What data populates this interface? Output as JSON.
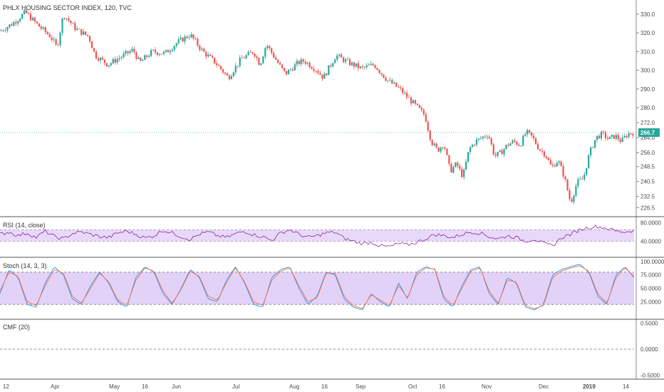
{
  "chart_data": [
    {
      "type": "candlestick",
      "title": "PHLX HOUSING SECTOR INDEX, 120, TVC",
      "y_ticks": [
        226.5,
        232.5,
        240.5,
        248.5,
        256.0,
        264.0,
        272.0,
        280.0,
        290.0,
        300.0,
        310.0,
        320.0,
        330.0
      ],
      "last_price": 266.7,
      "x_ticks": [
        "12",
        "Apr",
        "May",
        "16",
        "Jun",
        "Jul",
        "Aug",
        "16",
        "Sep",
        "Oct",
        "16",
        "Nov",
        "Dec",
        "2019",
        "14"
      ],
      "close_path": [
        {
          "t": 0.0,
          "v": 321
        },
        {
          "t": 0.02,
          "v": 325
        },
        {
          "t": 0.04,
          "v": 331
        },
        {
          "t": 0.06,
          "v": 324
        },
        {
          "t": 0.08,
          "v": 318
        },
        {
          "t": 0.09,
          "v": 312
        },
        {
          "t": 0.1,
          "v": 330
        },
        {
          "t": 0.12,
          "v": 322
        },
        {
          "t": 0.14,
          "v": 318
        },
        {
          "t": 0.15,
          "v": 308
        },
        {
          "t": 0.17,
          "v": 303
        },
        {
          "t": 0.19,
          "v": 307
        },
        {
          "t": 0.21,
          "v": 311
        },
        {
          "t": 0.22,
          "v": 304
        },
        {
          "t": 0.24,
          "v": 310
        },
        {
          "t": 0.26,
          "v": 309
        },
        {
          "t": 0.28,
          "v": 315
        },
        {
          "t": 0.3,
          "v": 319
        },
        {
          "t": 0.32,
          "v": 310
        },
        {
          "t": 0.34,
          "v": 304
        },
        {
          "t": 0.36,
          "v": 296
        },
        {
          "t": 0.38,
          "v": 306
        },
        {
          "t": 0.4,
          "v": 310
        },
        {
          "t": 0.41,
          "v": 303
        },
        {
          "t": 0.42,
          "v": 314
        },
        {
          "t": 0.44,
          "v": 303
        },
        {
          "t": 0.45,
          "v": 298
        },
        {
          "t": 0.47,
          "v": 304
        },
        {
          "t": 0.48,
          "v": 305
        },
        {
          "t": 0.5,
          "v": 300
        },
        {
          "t": 0.51,
          "v": 296
        },
        {
          "t": 0.53,
          "v": 308
        },
        {
          "t": 0.55,
          "v": 304
        },
        {
          "t": 0.57,
          "v": 301
        },
        {
          "t": 0.59,
          "v": 303
        },
        {
          "t": 0.61,
          "v": 295
        },
        {
          "t": 0.63,
          "v": 290
        },
        {
          "t": 0.65,
          "v": 283
        },
        {
          "t": 0.67,
          "v": 276
        },
        {
          "t": 0.68,
          "v": 262
        },
        {
          "t": 0.69,
          "v": 257
        },
        {
          "t": 0.7,
          "v": 261
        },
        {
          "t": 0.71,
          "v": 246
        },
        {
          "t": 0.72,
          "v": 250
        },
        {
          "t": 0.73,
          "v": 243
        },
        {
          "t": 0.74,
          "v": 258
        },
        {
          "t": 0.75,
          "v": 262
        },
        {
          "t": 0.77,
          "v": 266
        },
        {
          "t": 0.78,
          "v": 254
        },
        {
          "t": 0.79,
          "v": 256
        },
        {
          "t": 0.8,
          "v": 260
        },
        {
          "t": 0.81,
          "v": 262
        },
        {
          "t": 0.82,
          "v": 260
        },
        {
          "t": 0.83,
          "v": 267
        },
        {
          "t": 0.84,
          "v": 264
        },
        {
          "t": 0.85,
          "v": 258
        },
        {
          "t": 0.86,
          "v": 255
        },
        {
          "t": 0.87,
          "v": 248
        },
        {
          "t": 0.88,
          "v": 252
        },
        {
          "t": 0.89,
          "v": 243
        },
        {
          "t": 0.9,
          "v": 229
        },
        {
          "t": 0.91,
          "v": 240
        },
        {
          "t": 0.92,
          "v": 242
        },
        {
          "t": 0.93,
          "v": 256
        },
        {
          "t": 0.94,
          "v": 264
        },
        {
          "t": 0.95,
          "v": 266
        },
        {
          "t": 0.96,
          "v": 263
        },
        {
          "t": 0.97,
          "v": 265
        },
        {
          "t": 0.98,
          "v": 262
        },
        {
          "t": 0.99,
          "v": 266
        },
        {
          "t": 1.0,
          "v": 266.7
        }
      ]
    },
    {
      "type": "line",
      "title": "RSI (14, close)",
      "y_ticks": [
        40.0,
        80.0
      ],
      "band": [
        40,
        65
      ],
      "series": [
        {
          "values": [
            55,
            60,
            52,
            58,
            48,
            62,
            50,
            45,
            57,
            60,
            55,
            50,
            48,
            58,
            62,
            55,
            47,
            52,
            64,
            58,
            50,
            44,
            55,
            60,
            52,
            48,
            56,
            62,
            54,
            50,
            42,
            58,
            65,
            55,
            48,
            52,
            58,
            60,
            46,
            40,
            35,
            38,
            30,
            28,
            35,
            32,
            38,
            45,
            55,
            52,
            48,
            55,
            60,
            58,
            50,
            45,
            52,
            48,
            40,
            45,
            35,
            30,
            48,
            55,
            65,
            70,
            72,
            68,
            62,
            60,
            64
          ]
        }
      ]
    },
    {
      "type": "line",
      "title": "Stoch (14, 3, 3)",
      "y_ticks": [
        25.0,
        50.0,
        75.0,
        100.0
      ],
      "band": [
        20,
        80
      ],
      "series": [
        {
          "values": [
            40,
            85,
            70,
            20,
            15,
            60,
            90,
            75,
            30,
            20,
            55,
            80,
            60,
            25,
            15,
            70,
            90,
            80,
            40,
            20,
            50,
            85,
            70,
            30,
            25,
            65,
            90,
            60,
            20,
            15,
            70,
            85,
            90,
            50,
            20,
            35,
            80,
            75,
            30,
            15,
            10,
            40,
            25,
            15,
            60,
            30,
            80,
            90,
            85,
            30,
            15,
            55,
            85,
            90,
            40,
            20,
            70,
            60,
            15,
            10,
            20,
            75,
            85,
            90,
            95,
            80,
            35,
            20,
            75,
            90,
            70
          ]
        },
        {
          "values": [
            45,
            80,
            72,
            25,
            18,
            55,
            85,
            78,
            35,
            22,
            50,
            78,
            62,
            28,
            18,
            65,
            88,
            82,
            45,
            22,
            48,
            82,
            72,
            35,
            28,
            60,
            88,
            62,
            25,
            18,
            65,
            82,
            88,
            55,
            25,
            32,
            78,
            78,
            35,
            18,
            12,
            38,
            28,
            18,
            55,
            32,
            75,
            88,
            86,
            35,
            18,
            50,
            82,
            88,
            45,
            22,
            65,
            62,
            18,
            12,
            18,
            70,
            82,
            88,
            92,
            82,
            40,
            22,
            70,
            88,
            72
          ]
        }
      ]
    },
    {
      "type": "line",
      "title": "CMF (20)",
      "y_ticks": [
        -0.5,
        0.0,
        0.5
      ],
      "series": []
    }
  ]
}
